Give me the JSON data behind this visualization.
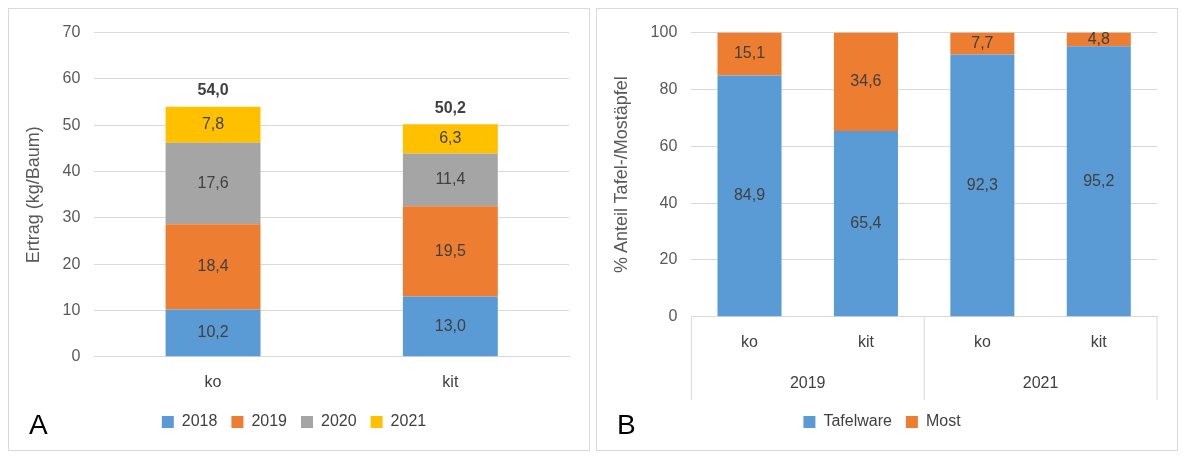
{
  "chart_data": [
    {
      "type": "bar",
      "stacked": true,
      "ylabel": "Ertrag (kg/Baum)",
      "categories": [
        "ko",
        "kit"
      ],
      "ylim": [
        0,
        70
      ],
      "yticks": [
        0,
        10,
        20,
        30,
        40,
        50,
        60,
        70
      ],
      "grid": "y",
      "legend": "bottom",
      "totals": [
        "54,0",
        "50,2"
      ],
      "annotations": [
        "A"
      ],
      "series": [
        {
          "name": "2018",
          "color": "#5b9bd5",
          "values": [
            10.2,
            13.0
          ],
          "value_labels": [
            "10,2",
            "13,0"
          ]
        },
        {
          "name": "2019",
          "color": "#ed7d31",
          "values": [
            18.4,
            19.5
          ],
          "value_labels": [
            "18,4",
            "19,5"
          ]
        },
        {
          "name": "2020",
          "color": "#a5a5a5",
          "values": [
            17.6,
            11.4
          ],
          "value_labels": [
            "17,6",
            "11,4"
          ]
        },
        {
          "name": "2021",
          "color": "#ffc000",
          "values": [
            7.8,
            6.3
          ],
          "value_labels": [
            "7,8",
            "6,3"
          ]
        }
      ]
    },
    {
      "type": "bar",
      "stacked": true,
      "ylabel": "% Anteil Tafel-/Mostäpfel",
      "categories": [
        "ko",
        "kit",
        "ko",
        "kit"
      ],
      "ylim": [
        0,
        100
      ],
      "yticks": [
        0,
        20,
        40,
        60,
        80,
        100
      ],
      "grid": "y",
      "legend": "bottom",
      "annotations": [
        "B",
        "2019",
        "2021"
      ],
      "series": [
        {
          "name": "Tafelware",
          "color": "#5b9bd5",
          "values": [
            84.9,
            65.4,
            92.3,
            95.2
          ],
          "value_labels": [
            "84,9",
            "65,4",
            "92,3",
            "95,2"
          ]
        },
        {
          "name": "Most",
          "color": "#ed7d31",
          "values": [
            15.1,
            34.6,
            7.7,
            4.8
          ],
          "value_labels": [
            "15,1",
            "34,6",
            "7,7",
            "4,8"
          ]
        }
      ]
    }
  ]
}
